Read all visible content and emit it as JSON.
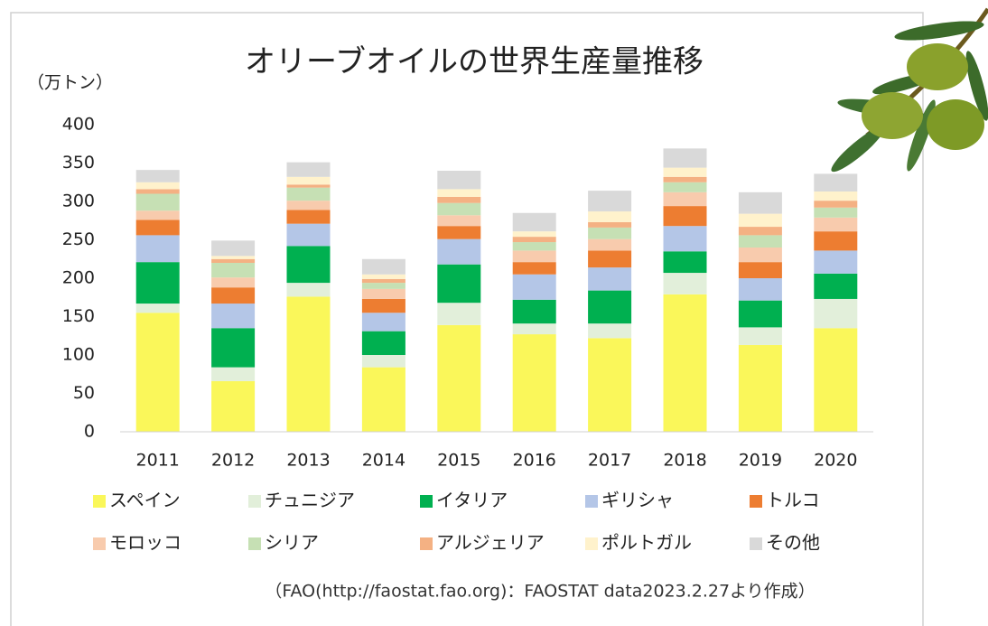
{
  "chart_data": {
    "type": "stacked_bar",
    "title": "オリーブオイルの世界生産量推移",
    "y_label": "（万トン）",
    "note": "（FAO(http://faostat.fao.org)：FAOSTAT data2023.2.27より作成）",
    "categories": [
      "2011",
      "2012",
      "2013",
      "2014",
      "2015",
      "2016",
      "2017",
      "2018",
      "2019",
      "2020"
    ],
    "ylim": [
      0,
      400
    ],
    "yticks": [
      0,
      50,
      100,
      150,
      200,
      250,
      300,
      350,
      400
    ],
    "grid": false,
    "series": [
      {
        "name": "スペイン",
        "color": "#faf75a",
        "values": [
          155,
          66,
          176,
          84,
          139,
          127,
          122,
          179,
          113,
          135
        ]
      },
      {
        "name": "チュニジア",
        "color": "#e2efda",
        "values": [
          12,
          18,
          18,
          16,
          29,
          14,
          19,
          28,
          23,
          38
        ]
      },
      {
        "name": "イタリア",
        "color": "#00b050",
        "values": [
          54,
          51,
          48,
          31,
          50,
          31,
          43,
          28,
          35,
          33
        ]
      },
      {
        "name": "ギリシャ",
        "color": "#b4c6e7",
        "values": [
          35,
          32,
          29,
          24,
          33,
          33,
          30,
          33,
          29,
          30
        ]
      },
      {
        "name": "トルコ",
        "color": "#ed7d31",
        "values": [
          20,
          21,
          18,
          18,
          17,
          16,
          22,
          26,
          21,
          25
        ]
      },
      {
        "name": "モロッコ",
        "color": "#f8cbad",
        "values": [
          12,
          13,
          12,
          13,
          14,
          15,
          15,
          18,
          19,
          18
        ]
      },
      {
        "name": "シリア",
        "color": "#c6e0b4",
        "values": [
          22,
          19,
          17,
          8,
          16,
          11,
          15,
          13,
          16,
          13
        ]
      },
      {
        "name": "アルジェリア",
        "color": "#f4b183",
        "values": [
          6,
          5,
          4,
          5,
          8,
          7,
          7,
          7,
          11,
          9
        ]
      },
      {
        "name": "ポルトガル",
        "color": "#fff2cc",
        "values": [
          9,
          4,
          10,
          6,
          10,
          7,
          14,
          12,
          17,
          12
        ]
      },
      {
        "name": "その他",
        "color": "#d9d9d9",
        "values": [
          16,
          20,
          19,
          20,
          24,
          24,
          27,
          25,
          28,
          23
        ]
      }
    ]
  }
}
